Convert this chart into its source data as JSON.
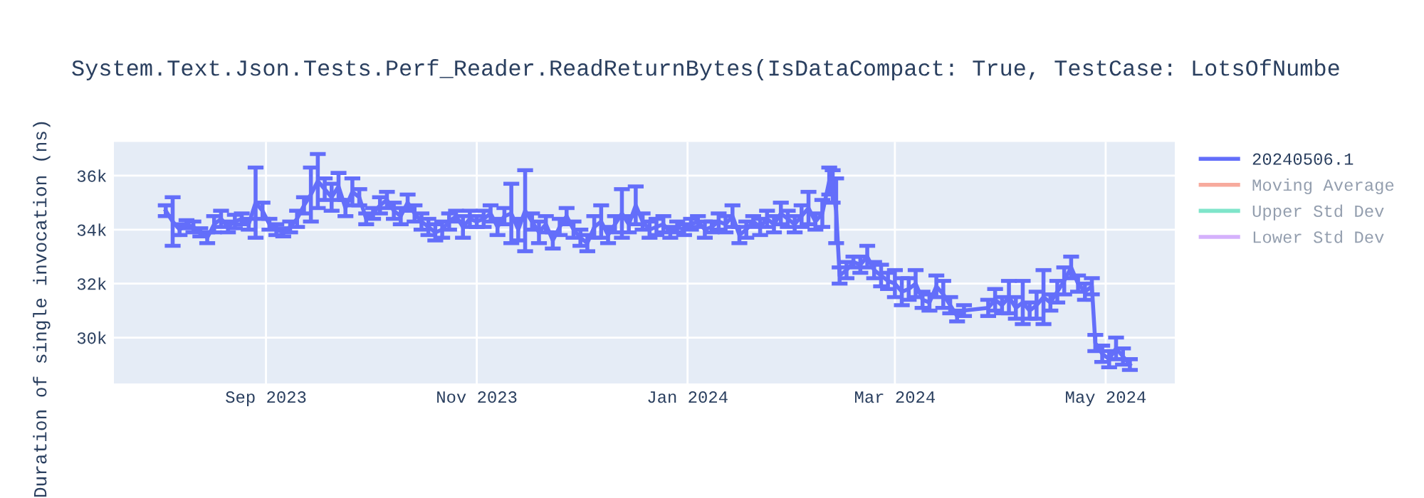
{
  "chart_data": {
    "type": "line",
    "title": "System.Text.Json.Tests.Perf_Reader.ReadReturnBytes(IsDataCompact: True, TestCase: LotsOfNumbe",
    "ylabel": "Duration of single invocation (ns)",
    "x": [
      "2023-08-03",
      "2023-08-05",
      "2023-08-07",
      "2023-08-09",
      "2023-08-11",
      "2023-08-13",
      "2023-08-15",
      "2023-08-17",
      "2023-08-19",
      "2023-08-21",
      "2023-08-23",
      "2023-08-25",
      "2023-08-27",
      "2023-08-29",
      "2023-08-31",
      "2023-09-02",
      "2023-09-04",
      "2023-09-06",
      "2023-09-08",
      "2023-09-10",
      "2023-09-12",
      "2023-09-14",
      "2023-09-16",
      "2023-09-18",
      "2023-09-20",
      "2023-09-22",
      "2023-09-24",
      "2023-09-26",
      "2023-09-28",
      "2023-09-30",
      "2023-10-02",
      "2023-10-04",
      "2023-10-06",
      "2023-10-08",
      "2023-10-10",
      "2023-10-12",
      "2023-10-14",
      "2023-10-16",
      "2023-10-18",
      "2023-10-20",
      "2023-10-22",
      "2023-10-24",
      "2023-10-26",
      "2023-10-28",
      "2023-10-30",
      "2023-11-01",
      "2023-11-03",
      "2023-11-05",
      "2023-11-07",
      "2023-11-09",
      "2023-11-11",
      "2023-11-13",
      "2023-11-15",
      "2023-11-17",
      "2023-11-19",
      "2023-11-21",
      "2023-11-23",
      "2023-11-25",
      "2023-11-27",
      "2023-11-29",
      "2023-12-01",
      "2023-12-03",
      "2023-12-05",
      "2023-12-07",
      "2023-12-09",
      "2023-12-11",
      "2023-12-13",
      "2023-12-15",
      "2023-12-17",
      "2023-12-19",
      "2023-12-21",
      "2023-12-23",
      "2023-12-25",
      "2023-12-27",
      "2023-12-29",
      "2023-12-31",
      "2024-01-02",
      "2024-01-04",
      "2024-01-06",
      "2024-01-08",
      "2024-01-10",
      "2024-01-12",
      "2024-01-14",
      "2024-01-16",
      "2024-01-18",
      "2024-01-20",
      "2024-01-22",
      "2024-01-24",
      "2024-01-26",
      "2024-01-28",
      "2024-01-30",
      "2024-02-01",
      "2024-02-03",
      "2024-02-05",
      "2024-02-07",
      "2024-02-09",
      "2024-02-11",
      "2024-02-12",
      "2024-02-13",
      "2024-02-14",
      "2024-02-16",
      "2024-02-18",
      "2024-02-20",
      "2024-02-22",
      "2024-02-24",
      "2024-02-26",
      "2024-02-28",
      "2024-03-01",
      "2024-03-03",
      "2024-03-05",
      "2024-03-07",
      "2024-03-09",
      "2024-03-11",
      "2024-03-13",
      "2024-03-15",
      "2024-03-17",
      "2024-03-19",
      "2024-03-21",
      "2024-03-28",
      "2024-03-30",
      "2024-04-01",
      "2024-04-03",
      "2024-04-05",
      "2024-04-07",
      "2024-04-09",
      "2024-04-11",
      "2024-04-13",
      "2024-04-15",
      "2024-04-17",
      "2024-04-19",
      "2024-04-21",
      "2024-04-23",
      "2024-04-25",
      "2024-04-27",
      "2024-04-28",
      "2024-04-30",
      "2024-05-02",
      "2024-05-04",
      "2024-05-06",
      "2024-05-08"
    ],
    "series": [
      {
        "name": "20240506.1",
        "color": "#636efa",
        "values": [
          34700,
          34300,
          34000,
          34200,
          34100,
          33900,
          33700,
          34200,
          34400,
          34100,
          34300,
          34400,
          34200,
          35000,
          34700,
          34200,
          34000,
          33900,
          34100,
          34400,
          34900,
          35300,
          35800,
          35500,
          35200,
          35600,
          34800,
          35400,
          35200,
          34400,
          34600,
          34900,
          35100,
          34700,
          34500,
          35000,
          34600,
          34300,
          34100,
          33900,
          34000,
          34300,
          34500,
          34100,
          34400,
          34300,
          34400,
          34600,
          34100,
          34500,
          34600,
          34000,
          34700,
          34300,
          33900,
          34200,
          33600,
          34100,
          34500,
          34000,
          33700,
          33500,
          34100,
          34300,
          33800,
          34200,
          34600,
          34200,
          34900,
          34300,
          34000,
          34100,
          34200,
          33900,
          34100,
          34000,
          34200,
          34300,
          34000,
          34100,
          34300,
          34200,
          34500,
          33800,
          34000,
          34300,
          34100,
          34400,
          34200,
          34600,
          34400,
          34200,
          34500,
          34800,
          34300,
          34600,
          35800,
          35600,
          34700,
          32300,
          32500,
          32800,
          32700,
          33000,
          32500,
          32300,
          32100,
          32000,
          31700,
          31800,
          32000,
          31400,
          31300,
          31900,
          31600,
          31200,
          30800,
          31000,
          31100,
          31400,
          31200,
          31500,
          31100,
          31300,
          31000,
          31200,
          31500,
          31300,
          31700,
          32100,
          32600,
          32000,
          31700,
          31900,
          29800,
          29400,
          29200,
          29600,
          29300,
          29000
        ],
        "errors": [
          200,
          900,
          200,
          150,
          200,
          150,
          200,
          300,
          300,
          200,
          250,
          200,
          200,
          1300,
          300,
          200,
          200,
          150,
          200,
          300,
          300,
          1000,
          1000,
          400,
          500,
          500,
          300,
          500,
          300,
          200,
          200,
          300,
          300,
          300,
          300,
          300,
          300,
          300,
          300,
          300,
          300,
          300,
          200,
          400,
          300,
          200,
          300,
          300,
          300,
          300,
          1100,
          400,
          1500,
          300,
          400,
          300,
          300,
          300,
          300,
          300,
          300,
          300,
          400,
          600,
          300,
          300,
          900,
          300,
          700,
          300,
          300,
          300,
          300,
          200,
          200,
          200,
          200,
          200,
          300,
          200,
          300,
          300,
          400,
          300,
          300,
          200,
          300,
          300,
          300,
          400,
          300,
          300,
          400,
          600,
          300,
          500,
          500,
          600,
          1200,
          300,
          300,
          200,
          300,
          400,
          300,
          400,
          300,
          500,
          500,
          400,
          500,
          300,
          300,
          400,
          500,
          300,
          200,
          200,
          300,
          400,
          300,
          600,
          400,
          800,
          300,
          500,
          1000,
          300,
          400,
          500,
          400,
          300,
          300,
          300,
          300,
          300,
          300,
          400,
          300,
          200
        ]
      },
      {
        "name": "Moving Average",
        "color": "#ef553b",
        "values": [
          null,
          null,
          null,
          null,
          null,
          null,
          null,
          null,
          null,
          null,
          null,
          null,
          null,
          null,
          null,
          null,
          null,
          null,
          null,
          null,
          null,
          null,
          null,
          null,
          null,
          null,
          null,
          null,
          null,
          null,
          null,
          null,
          null,
          null,
          null,
          null,
          null,
          null,
          null,
          null,
          null,
          null,
          null,
          null,
          null,
          null,
          null,
          null,
          null,
          null,
          null,
          null,
          null,
          null,
          null,
          null,
          null,
          null,
          null,
          null,
          null,
          null,
          null,
          null,
          null,
          null,
          null,
          null,
          null,
          null,
          null,
          null,
          null,
          null,
          null,
          null,
          null,
          null,
          null,
          null,
          null,
          null,
          null,
          null,
          null,
          null,
          null,
          null,
          null,
          null,
          null,
          null,
          null,
          null,
          null,
          null,
          null,
          null,
          null,
          null,
          null,
          null,
          null,
          null,
          null,
          null,
          null,
          null,
          null,
          null,
          null,
          null,
          null,
          null,
          null,
          null,
          null,
          null,
          null,
          null,
          null,
          null,
          null,
          null,
          null,
          null,
          null,
          null,
          null,
          null,
          null,
          null,
          null,
          null,
          null,
          null,
          null,
          null,
          null,
          null
        ]
      },
      {
        "name": "Upper Std Dev",
        "color": "#00cc96",
        "values": [
          null,
          null,
          null,
          null,
          null,
          null,
          null,
          null,
          null,
          null,
          null,
          null,
          null,
          null,
          null,
          null,
          null,
          null,
          null,
          null,
          null,
          null,
          null,
          null,
          null,
          null,
          null,
          null,
          null,
          null,
          null,
          null,
          null,
          null,
          null,
          null,
          null,
          null,
          null,
          null,
          null,
          null,
          null,
          null,
          null,
          null,
          null,
          null,
          null,
          null,
          null,
          null,
          null,
          null,
          null,
          null,
          null,
          null,
          null,
          null,
          null,
          null,
          null,
          null,
          null,
          null,
          null,
          null,
          null,
          null,
          null,
          null,
          null,
          null,
          null,
          null,
          null,
          null,
          null,
          null,
          null,
          null,
          null,
          null,
          null,
          null,
          null,
          null,
          null,
          null,
          null,
          null,
          null,
          null,
          null,
          null,
          null,
          null,
          null,
          null,
          null,
          null,
          null,
          null,
          null,
          null,
          null,
          null,
          null,
          null,
          null,
          null,
          null,
          null,
          null,
          null,
          null,
          null,
          null,
          null,
          null,
          null,
          null,
          null,
          null,
          null,
          null,
          null,
          null,
          null,
          null,
          null,
          null,
          null,
          null,
          null,
          null,
          null,
          null,
          null
        ]
      },
      {
        "name": "Lower Std Dev",
        "color": "#ab63fa",
        "values": [
          null,
          null,
          null,
          null,
          null,
          null,
          null,
          null,
          null,
          null,
          null,
          null,
          null,
          null,
          null,
          null,
          null,
          null,
          null,
          null,
          null,
          null,
          null,
          null,
          null,
          null,
          null,
          null,
          null,
          null,
          null,
          null,
          null,
          null,
          null,
          null,
          null,
          null,
          null,
          null,
          null,
          null,
          null,
          null,
          null,
          null,
          null,
          null,
          null,
          null,
          null,
          null,
          null,
          null,
          null,
          null,
          null,
          null,
          null,
          null,
          null,
          null,
          null,
          null,
          null,
          null,
          null,
          null,
          null,
          null,
          null,
          null,
          null,
          null,
          null,
          null,
          null,
          null,
          null,
          null,
          null,
          null,
          null,
          null,
          null,
          null,
          null,
          null,
          null,
          null,
          null,
          null,
          null,
          null,
          null,
          null,
          null,
          null,
          null,
          null,
          null,
          null,
          null,
          null,
          null,
          null,
          null,
          null,
          null,
          null,
          null,
          null,
          null,
          null,
          null,
          null,
          null,
          null,
          null,
          null,
          null,
          null,
          null,
          null,
          null,
          null,
          null,
          null,
          null,
          null,
          null,
          null,
          null,
          null,
          null,
          null,
          null,
          null,
          null,
          null
        ]
      }
    ],
    "xlim": [
      "2023-07-19",
      "2024-05-21"
    ],
    "xticks": [
      {
        "value": "2023-09-01",
        "label": "Sep 2023"
      },
      {
        "value": "2023-11-01",
        "label": "Nov 2023"
      },
      {
        "value": "2024-01-01",
        "label": "Jan 2024"
      },
      {
        "value": "2024-03-01",
        "label": "Mar 2024"
      },
      {
        "value": "2024-05-01",
        "label": "May 2024"
      }
    ],
    "ylim": [
      28300,
      37250
    ],
    "yticks": [
      {
        "value": 30000,
        "label": "30k"
      },
      {
        "value": 32000,
        "label": "32k"
      },
      {
        "value": 34000,
        "label": "34k"
      },
      {
        "value": 36000,
        "label": "36k"
      }
    ],
    "grid": true,
    "legend": "right",
    "marker": "none",
    "line_style": "solid"
  }
}
